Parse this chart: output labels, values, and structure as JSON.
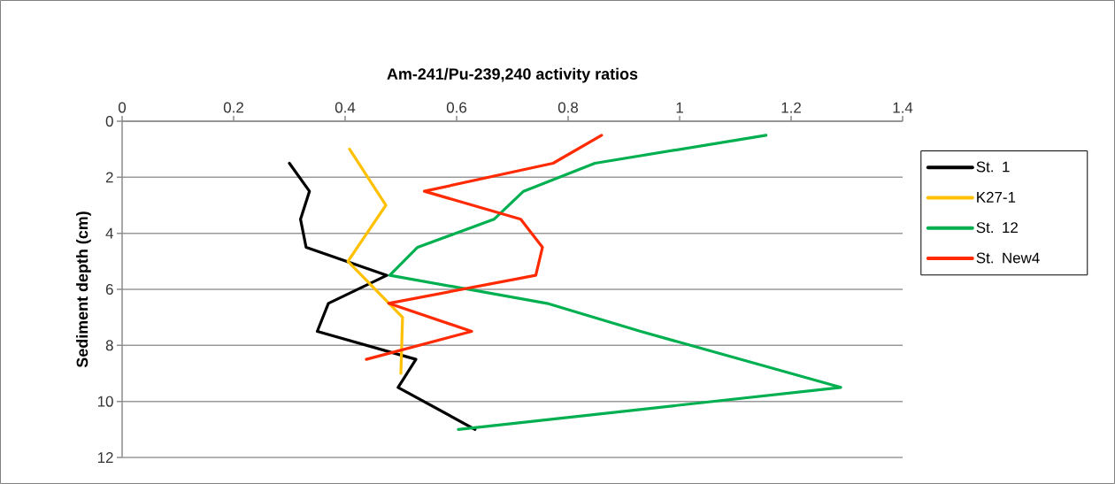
{
  "chart_data": {
    "type": "line",
    "title": "Am-241/Pu-239,240 activity ratios",
    "ylabel": "Sediment depth (cm)",
    "xlim": [
      0,
      1.4
    ],
    "xticks": [
      0,
      0.2,
      0.4,
      0.6,
      0.8,
      1,
      1.2,
      1.4
    ],
    "ylim": [
      12,
      0
    ],
    "yticks": [
      0,
      2,
      4,
      6,
      8,
      10,
      12
    ],
    "grid": "y",
    "legend": "right",
    "marker": "none",
    "line_style": "solid",
    "series": [
      {
        "name": "St. 1",
        "color": "#000000",
        "x": [
          0.3,
          0.336,
          0.32,
          0.33,
          0.475,
          0.37,
          0.35,
          0.527,
          0.495,
          0.633
        ],
        "values": [
          1.5,
          2.5,
          3.5,
          4.5,
          5.5,
          6.5,
          7.5,
          8.5,
          9.5,
          11
        ]
      },
      {
        "name": "K27-1",
        "color": "#ffc000",
        "x": [
          0.408,
          0.473,
          0.405,
          0.503,
          0.5
        ],
        "values": [
          1,
          3,
          5,
          7,
          9
        ]
      },
      {
        "name": "St. 12",
        "color": "#00b050",
        "x": [
          1.155,
          0.848,
          0.72,
          0.667,
          0.53,
          0.48,
          0.762,
          0.93,
          1.289,
          0.603
        ],
        "values": [
          0.5,
          1.5,
          2.5,
          3.5,
          4.5,
          5.5,
          6.5,
          7.5,
          9.5,
          11
        ]
      },
      {
        "name": "St. New4",
        "color": "#ff2a00",
        "x": [
          0.86,
          0.773,
          0.542,
          0.715,
          0.754,
          0.742,
          0.478,
          0.627,
          0.438
        ],
        "values": [
          0.5,
          1.5,
          2.5,
          3.5,
          4.5,
          5.5,
          6.5,
          7.5,
          8.5
        ]
      }
    ]
  }
}
